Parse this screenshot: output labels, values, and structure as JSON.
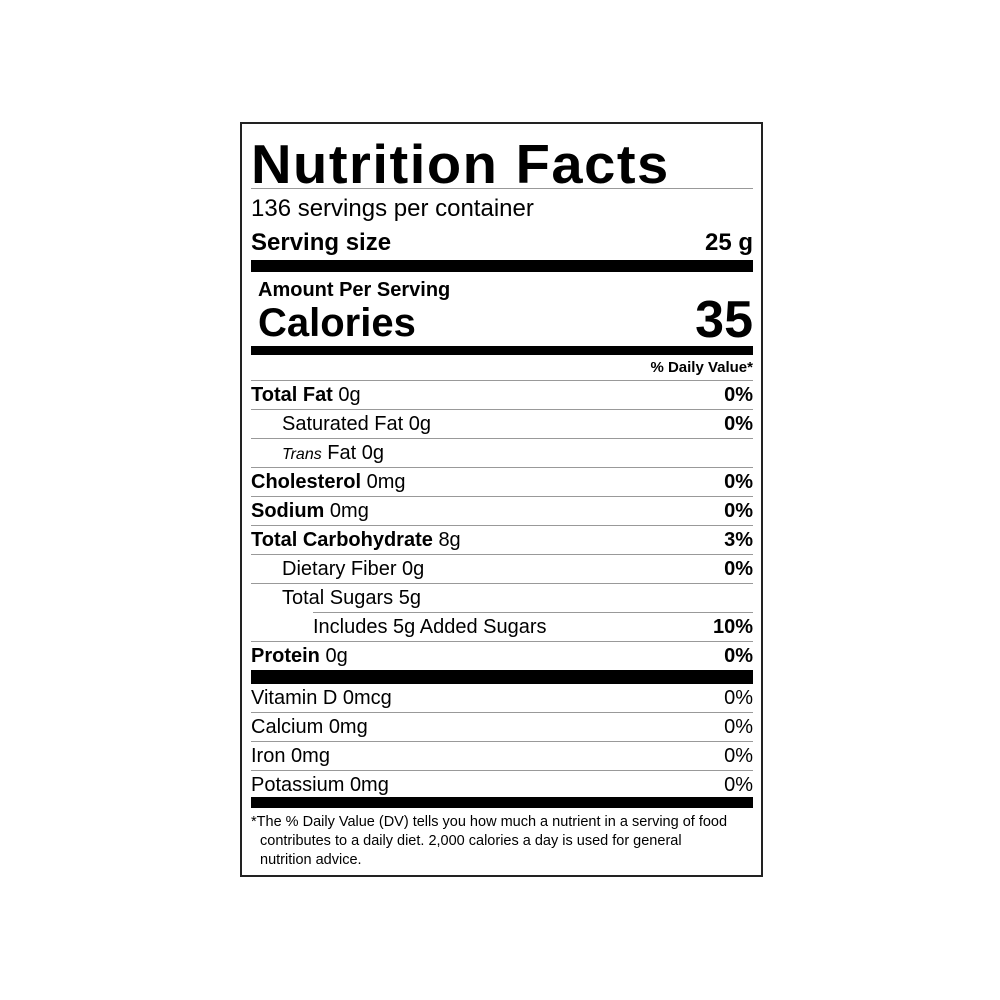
{
  "title": "Nutrition Facts",
  "servings_per_container": "136 servings per container",
  "serving_size": {
    "label": "Serving size",
    "value": "25 g"
  },
  "amount_per_serving": "Amount Per Serving",
  "calories": {
    "label": "Calories",
    "value": "35"
  },
  "daily_value_header": "% Daily Value*",
  "nutrients": [
    {
      "name": "Total Fat",
      "amount": "0g",
      "dv": "0%"
    },
    {
      "name": "Saturated Fat",
      "amount": "0g",
      "dv": "0%"
    },
    {
      "prefix": "Trans",
      "name": "Fat",
      "amount": "0g",
      "dv": ""
    },
    {
      "name": "Cholesterol",
      "amount": "0mg",
      "dv": "0%"
    },
    {
      "name": "Sodium",
      "amount": "0mg",
      "dv": "0%"
    },
    {
      "name": "Total Carbohydrate",
      "amount": "8g",
      "dv": "3%"
    },
    {
      "name": "Dietary Fiber",
      "amount": "0g",
      "dv": "0%"
    },
    {
      "name": "Total Sugars",
      "amount": "5g",
      "dv": ""
    },
    {
      "name": "Includes 5g Added Sugars",
      "amount": "",
      "dv": "10%"
    },
    {
      "name": "Protein",
      "amount": "0g",
      "dv": "0%"
    }
  ],
  "vitamins": [
    {
      "name": "Vitamin D",
      "amount": "0mcg",
      "dv": "0%"
    },
    {
      "name": "Calcium",
      "amount": "0mg",
      "dv": "0%"
    },
    {
      "name": "Iron",
      "amount": "0mg",
      "dv": "0%"
    },
    {
      "name": "Potassium",
      "amount": "0mg",
      "dv": "0%"
    }
  ],
  "footnote": {
    "star": "*",
    "text": "The % Daily Value (DV) tells you how much a nutrient in a serving of food contributes to a daily diet. 2,000 calories a day is used for general nutrition advice."
  }
}
